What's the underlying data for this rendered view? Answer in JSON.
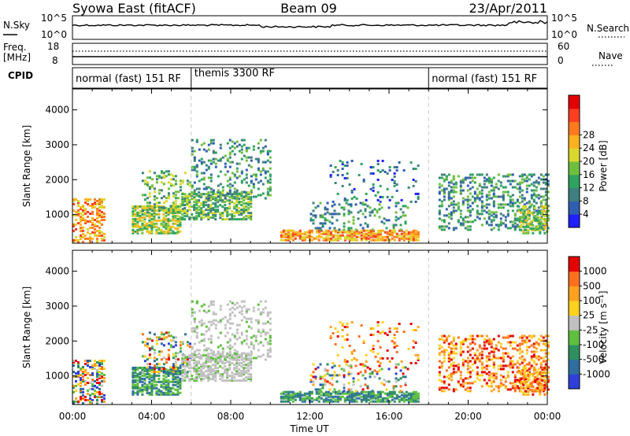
{
  "header": {
    "station": "Syowa East (fitACF)",
    "beam": "Beam 09",
    "date": "23/Apr/2011"
  },
  "noise_panel": {
    "left_label": "N.Sky",
    "left_ticks": [
      "10^5",
      "10^0"
    ],
    "right_ticks": [
      "10^5",
      "10^0"
    ],
    "right_label": "N.Search"
  },
  "freq_panel": {
    "left_label_1": "Freq.",
    "left_label_2": "[MHz]",
    "left_ticks": [
      "18",
      "8"
    ],
    "right_ticks": [
      "60",
      "0"
    ],
    "right_label": "Nave"
  },
  "cpid_panel": {
    "label": "CPID",
    "modes": [
      {
        "label": "normal (fast) 151 RF",
        "start_hour": 0
      },
      {
        "label": "themis 3300 RF",
        "start_hour": 6
      },
      {
        "label": "normal (fast) 151 RF",
        "start_hour": 18
      }
    ]
  },
  "chart_data": [
    {
      "type": "heatmap",
      "parameter": "power",
      "ylabel": "Slant Range [km]",
      "yticks": [
        1000,
        2000,
        3000,
        4000
      ],
      "ylim": [
        180,
        4600
      ],
      "xlim_hours": [
        0,
        24
      ],
      "colorbar": {
        "label": "Power [dB]",
        "ticks": [
          "4",
          "8",
          "12",
          "16",
          "20",
          "24",
          "28"
        ],
        "colors": [
          "#1f1fff",
          "#2f5fb0",
          "#3f7f7f",
          "#2fa35f",
          "#6fbf3f",
          "#d8d82f",
          "#ffb21f",
          "#ff7a1f",
          "#ff3f1f",
          "#e50000"
        ]
      }
    },
    {
      "type": "heatmap",
      "parameter": "velocity",
      "ylabel": "Slant Range [km]",
      "yticks": [
        1000,
        2000,
        3000,
        4000
      ],
      "ylim": [
        180,
        4600
      ],
      "xlim_hours": [
        0,
        24
      ],
      "xticks": [
        "00:00",
        "04:00",
        "08:00",
        "12:00",
        "16:00",
        "20:00",
        "00:00"
      ],
      "xlabel": "Time UT",
      "colorbar": {
        "label": "Velocity [m s⁻¹]",
        "ticks": [
          "1000",
          "500",
          "100",
          "25",
          "-25",
          "-100",
          "-500",
          "-1000"
        ],
        "colors": [
          "#2f3fd8",
          "#2f6f9f",
          "#2f8f5f",
          "#5fbf3f",
          "#c0c0c0",
          "#ffd21f",
          "#ffa21f",
          "#ff6f1f",
          "#e50000"
        ]
      }
    }
  ]
}
